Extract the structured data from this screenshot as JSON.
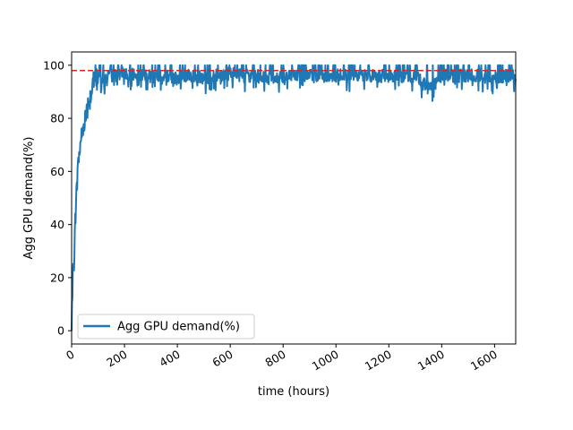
{
  "chart_data": {
    "type": "line",
    "title": "",
    "xlabel": "time (hours)",
    "ylabel": "Agg GPU demand(%)",
    "xlim": [
      0,
      1680
    ],
    "ylim": [
      -5,
      105
    ],
    "xticks": [
      0,
      200,
      400,
      600,
      800,
      1000,
      1200,
      1400,
      1600
    ],
    "yticks": [
      0,
      20,
      40,
      60,
      80,
      100
    ],
    "x_tick_rotation": 30,
    "grid": false,
    "legend": {
      "position": "lower-left",
      "entries": [
        "Agg GPU demand(%)"
      ]
    },
    "colors": {
      "series": "#1f77b4",
      "reference": "#d62728"
    },
    "reference_line": {
      "y": 98,
      "style": "dashed"
    },
    "series": [
      {
        "name": "Agg GPU demand(%)",
        "x": [
          0,
          5,
          10,
          15,
          20,
          25,
          30,
          35,
          40,
          50,
          60,
          70,
          80,
          90,
          100,
          120,
          140,
          160,
          200,
          250,
          300,
          350,
          400,
          450,
          500,
          550,
          600,
          650,
          700,
          750,
          800,
          850,
          900,
          950,
          1000,
          1050,
          1100,
          1150,
          1200,
          1250,
          1300,
          1340,
          1360,
          1400,
          1450,
          1500,
          1550,
          1600,
          1650,
          1680
        ],
        "y": [
          0,
          20,
          30,
          45,
          55,
          62,
          68,
          72,
          75,
          80,
          85,
          88,
          92,
          94,
          95,
          95,
          96,
          96,
          97,
          96,
          96,
          96,
          95,
          96,
          95,
          96,
          97,
          96,
          96,
          95,
          96,
          96,
          96,
          96,
          96,
          96,
          96,
          96,
          96,
          96,
          96,
          92,
          91,
          96,
          96,
          96,
          96,
          95,
          96,
          96
        ]
      }
    ]
  }
}
